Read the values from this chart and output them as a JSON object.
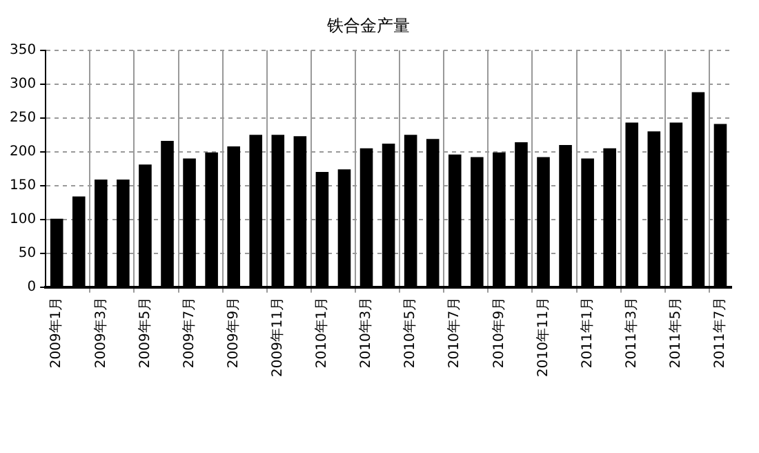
{
  "chart_data": {
    "type": "bar",
    "title": "铁合金产量",
    "categories": [
      "2009年1月",
      null,
      "2009年3月",
      null,
      "2009年5月",
      null,
      "2009年7月",
      null,
      "2009年9月",
      null,
      "2009年11月",
      null,
      "2010年1月",
      null,
      "2010年3月",
      null,
      "2010年5月",
      null,
      "2010年7月",
      null,
      "2010年9月",
      null,
      "2010年11月",
      null,
      "2011年1月",
      null,
      "2011年3月",
      null,
      "2011年5月",
      null,
      "2011年7月"
    ],
    "values": [
      101,
      134,
      159,
      159,
      181,
      216,
      190,
      199,
      208,
      225,
      225,
      223,
      170,
      174,
      205,
      212,
      225,
      219,
      196,
      192,
      199,
      214,
      192,
      210,
      190,
      205,
      243,
      230,
      243,
      288,
      241
    ],
    "color": "#000000",
    "ylim": [
      0,
      350
    ],
    "yticks": [
      0,
      50,
      100,
      150,
      200,
      250,
      300,
      350
    ],
    "grid": true,
    "legend": false
  }
}
